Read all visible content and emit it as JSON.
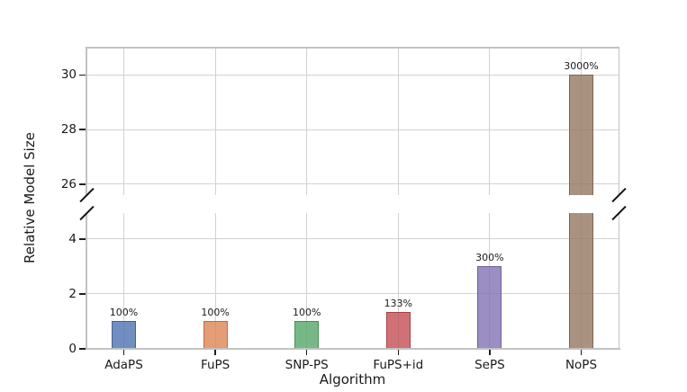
{
  "chart_data": {
    "type": "bar",
    "title": "",
    "xlabel": "Algorithm",
    "ylabel": "Relative Model Size",
    "categories": [
      "AdaPS",
      "FuPS",
      "SNP-PS",
      "FuPS+id",
      "SePS",
      "NoPS"
    ],
    "values": [
      1.0,
      1.0,
      1.0,
      1.33,
      3.0,
      30.0
    ],
    "bar_labels": [
      "100%",
      "100%",
      "100%",
      "133%",
      "300%",
      "3000%"
    ],
    "bar_fill_colors": [
      "rgba(76,114,176,0.8)",
      "rgba(221,132,82,0.8)",
      "rgba(85,168,104,0.8)",
      "rgba(196,78,82,0.8)",
      "rgba(129,114,179,0.8)",
      "rgba(147,120,96,0.8)"
    ],
    "bar_edge_colors": [
      "#416196",
      "#bc7046",
      "#488f58",
      "#a74246",
      "#6e6198",
      "#7d6652"
    ],
    "broken_axis": {
      "top_panel": {
        "ylim": [
          25.6,
          31.0
        ],
        "ticks": [
          "26",
          "28",
          "30"
        ],
        "tick_values": [
          26,
          28,
          30
        ]
      },
      "bottom_panel": {
        "ylim": [
          0,
          4.94
        ],
        "ticks": [
          "0",
          "2",
          "4"
        ],
        "tick_values": [
          0,
          2,
          4
        ]
      }
    },
    "grid": true,
    "legend_position": "none"
  },
  "style": {
    "background": "#ffffff",
    "grid_color": "#d2d2d2",
    "spine_color": "#c2c2c2",
    "axis_line_color": "#c2c2c2",
    "tick_mark_color": "#1f1f1f",
    "text_color": "#1a1a1a",
    "break_mark_color": "#111111"
  }
}
